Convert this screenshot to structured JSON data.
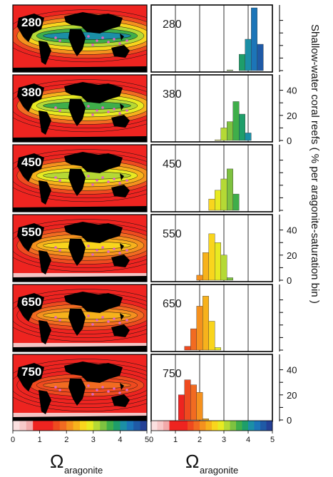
{
  "chart_data": {
    "type": "bar",
    "value_axis": {
      "ticks": [
        "0",
        "20",
        "40"
      ],
      "range": [
        0,
        50
      ]
    },
    "x_axis": {
      "range": [
        0,
        5
      ],
      "gridlines": [
        1,
        2,
        3,
        4
      ]
    },
    "ylabel": "Shallow-water coral reefs ( % per aragonite-saturation bin )",
    "xlabel_main": "Ω",
    "xlabel_sub": "aragonite",
    "colorbar": {
      "ticks": [
        "0",
        "1",
        "2",
        "3",
        "4",
        "5"
      ],
      "colors": [
        "#fbe0e0",
        "#f7c8c8",
        "#f2aaaa",
        "#ee2420",
        "#ee2420",
        "#ee2420",
        "#ef4a1f",
        "#f26b21",
        "#f5911e",
        "#f7b21c",
        "#f9d51d",
        "#e8ea22",
        "#b5d935",
        "#7ec240",
        "#3fae4a",
        "#1e9e6a",
        "#1b8fa6",
        "#1c75b8",
        "#1f5aa6",
        "#244096"
      ]
    },
    "panels": [
      {
        "label": "280",
        "bins": [
          {
            "x": 3.5,
            "v": 0
          },
          {
            "x": 3.75,
            "v": 13
          },
          {
            "x": 4.0,
            "v": 25
          },
          {
            "x": 4.25,
            "v": 50
          },
          {
            "x": 4.5,
            "v": 21
          },
          {
            "x": 3.25,
            "v": 0.5
          }
        ]
      },
      {
        "label": "380",
        "bins": [
          {
            "x": 2.75,
            "v": 0.5
          },
          {
            "x": 3.0,
            "v": 10
          },
          {
            "x": 3.25,
            "v": 15
          },
          {
            "x": 3.5,
            "v": 31
          },
          {
            "x": 3.75,
            "v": 21
          },
          {
            "x": 4.0,
            "v": 6
          }
        ]
      },
      {
        "label": "450",
        "bins": [
          {
            "x": 2.5,
            "v": 9
          },
          {
            "x": 2.75,
            "v": 16
          },
          {
            "x": 3.0,
            "v": 25
          },
          {
            "x": 3.25,
            "v": 33
          },
          {
            "x": 3.5,
            "v": 13
          }
        ]
      },
      {
        "label": "550",
        "bins": [
          {
            "x": 2.0,
            "v": 4
          },
          {
            "x": 2.25,
            "v": 22
          },
          {
            "x": 2.5,
            "v": 37
          },
          {
            "x": 2.75,
            "v": 30
          },
          {
            "x": 3.0,
            "v": 20
          },
          {
            "x": 3.25,
            "v": 2
          }
        ]
      },
      {
        "label": "650",
        "bins": [
          {
            "x": 1.5,
            "v": 3
          },
          {
            "x": 1.75,
            "v": 17
          },
          {
            "x": 2.0,
            "v": 35
          },
          {
            "x": 2.25,
            "v": 43
          },
          {
            "x": 2.5,
            "v": 23
          },
          {
            "x": 2.75,
            "v": 2
          }
        ]
      },
      {
        "label": "750",
        "bins": [
          {
            "x": 1.25,
            "v": 20
          },
          {
            "x": 1.5,
            "v": 32
          },
          {
            "x": 1.75,
            "v": 28
          },
          {
            "x": 2.0,
            "v": 22
          },
          {
            "x": 2.25,
            "v": 1
          }
        ]
      }
    ]
  }
}
